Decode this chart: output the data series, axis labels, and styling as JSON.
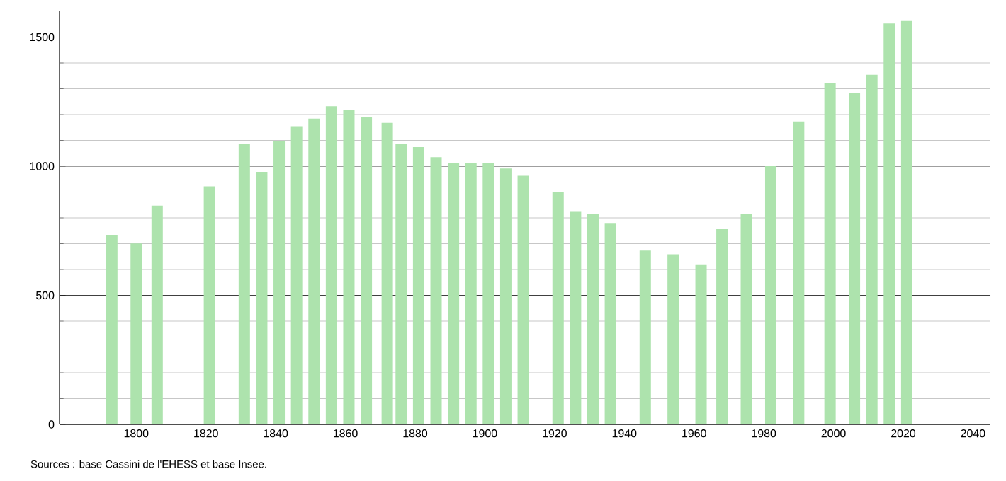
{
  "chart_data": {
    "type": "bar",
    "x": [
      1793,
      1800,
      1806,
      1821,
      1831,
      1836,
      1841,
      1846,
      1851,
      1856,
      1861,
      1866,
      1872,
      1876,
      1881,
      1886,
      1891,
      1896,
      1901,
      1906,
      1911,
      1921,
      1926,
      1931,
      1936,
      1946,
      1954,
      1962,
      1968,
      1975,
      1982,
      1990,
      1999,
      2006,
      2011,
      2016,
      2021
    ],
    "values": [
      734,
      701,
      847,
      922,
      1088,
      978,
      1098,
      1155,
      1184,
      1232,
      1218,
      1190,
      1168,
      1088,
      1074,
      1035,
      1011,
      1011,
      1011,
      991,
      963,
      900,
      823,
      814,
      780,
      673,
      659,
      620,
      756,
      814,
      1002,
      1173,
      1321,
      1282,
      1354,
      1553,
      1565
    ],
    "color": "#ade3ad",
    "xlim": [
      1778,
      2045
    ],
    "ylim": [
      0,
      1600
    ],
    "xticks": [
      1800,
      1820,
      1840,
      1860,
      1880,
      1900,
      1920,
      1940,
      1960,
      1980,
      2000,
      2020,
      2040
    ],
    "yticks": [
      0,
      500,
      1000,
      1500
    ],
    "grid": "y",
    "annotations": [
      "Sources : base Cassini de l'EHESS et base Insee."
    ]
  }
}
